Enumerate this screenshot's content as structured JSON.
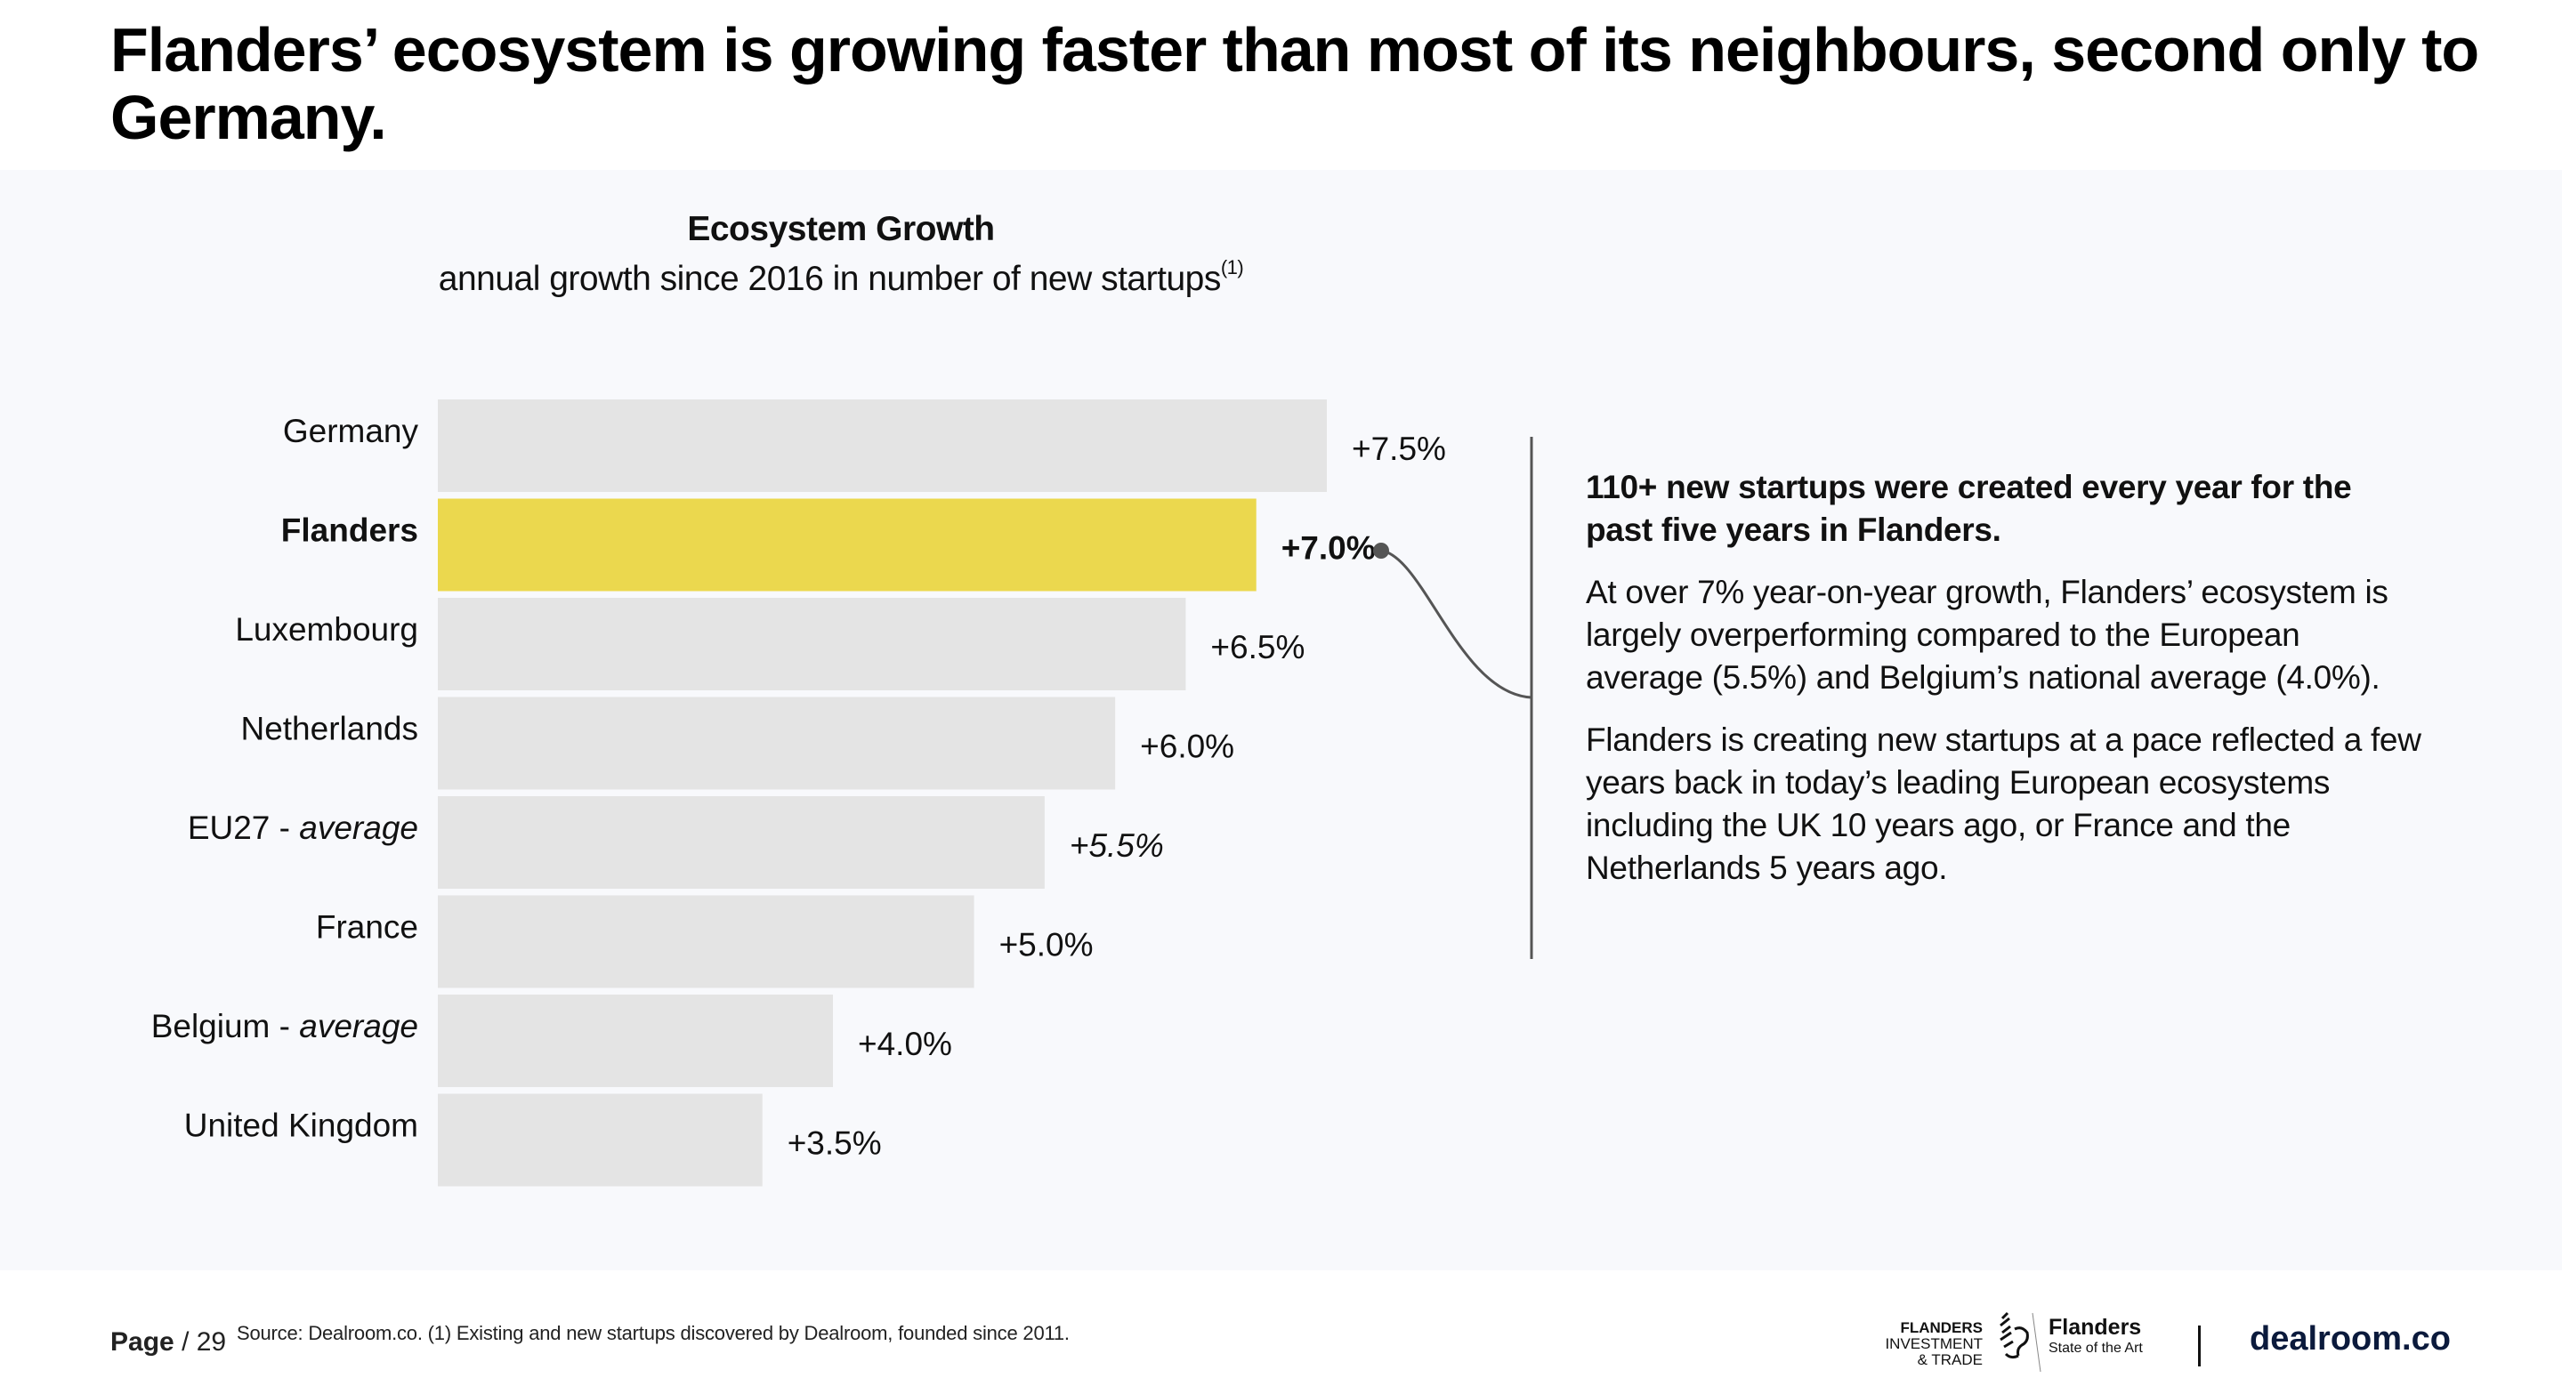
{
  "page": {
    "headline": "Flanders’ ecosystem is growing faster than most of its neighbours, second only to Germany."
  },
  "chart_data": {
    "type": "bar",
    "orientation": "horizontal",
    "title": "Ecosystem Growth",
    "subtitle": "annual growth since 2016 in number of new startups",
    "subtitle_footnote": "(1)",
    "xlabel": "",
    "ylabel": "",
    "unit": "%",
    "categories": [
      "Germany",
      "Flanders",
      "Luxembourg",
      "Netherlands",
      "EU27",
      "France",
      "Belgium",
      "United Kingdom"
    ],
    "category_suffixes": [
      "",
      "",
      "",
      "",
      " - average",
      "",
      " - average",
      ""
    ],
    "values": [
      7.5,
      7.0,
      6.5,
      6.0,
      5.5,
      5.0,
      4.0,
      3.5
    ],
    "value_labels": [
      "+7.5%",
      "+7.0%",
      "+6.5%",
      "+6.0%",
      "+5.5%",
      "+5.0%",
      "+4.0%",
      "+3.5%"
    ],
    "highlight": "Flanders",
    "italic_value_labels": [
      "EU27"
    ],
    "colors": {
      "bar": "#e4e4e4",
      "highlight": "#ebd84e",
      "annotation": "#555555"
    },
    "grid": false,
    "legend": "none"
  },
  "annotation": {
    "lead": "110+ new startups were created every year for the past five years in Flanders.",
    "paragraphs": [
      "At over 7% year-on-year growth, Flanders’ ecosystem is largely overperforming compared to the European average (5.5%) and Belgium’s national average (4.0%).",
      "Flanders is creating new startups at a pace reflected a few years back in today’s leading European ecosystems including the UK 10 years ago, or France and the Netherlands 5 years ago."
    ]
  },
  "footer": {
    "page_label": "Page",
    "page_total": "/ 29",
    "source": "Source: Dealroom.co. (1) Existing and new startups discovered by Dealroom, founded since 2011.",
    "logos": {
      "fit_line1": "FLANDERS",
      "fit_line2": "INVESTMENT",
      "fit_line3": "& TRADE",
      "flanders_name": "Flanders",
      "flanders_tagline": "State of the Art",
      "dealroom": "dealroom.co"
    }
  }
}
